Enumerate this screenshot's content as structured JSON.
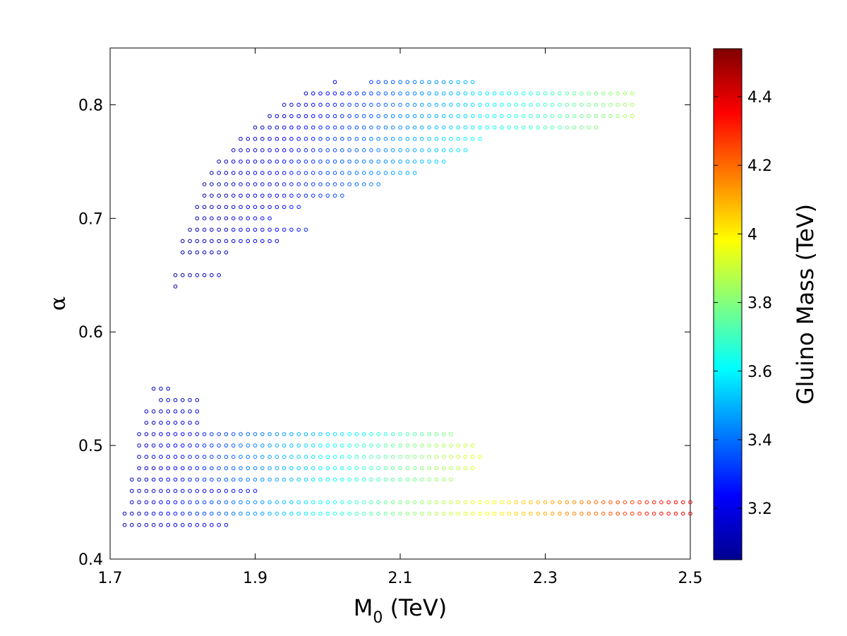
{
  "chart_data": {
    "type": "scatter",
    "title": "",
    "xlabel": "M",
    "xlabel_subscript": "0",
    "xlabel_unit": " (TeV)",
    "ylabel": "α",
    "xlim": [
      1.7,
      2.5
    ],
    "ylim": [
      0.4,
      0.85
    ],
    "xticks": [
      "1.7",
      "1.9",
      "2.1",
      "2.3",
      "2.5"
    ],
    "yticks": [
      "0.4",
      "0.5",
      "0.6",
      "0.7",
      "0.8"
    ],
    "grid": false,
    "marker": "open-circle",
    "x_step": 0.01,
    "color_scale": {
      "colormap": "jet",
      "label": "Gluino Mass (TeV)",
      "range": [
        3.05,
        4.54
      ],
      "ticks": [
        "3.2",
        "3.4",
        "3.6",
        "3.8",
        "4",
        "4.2",
        "4.4"
      ]
    },
    "rows": [
      {
        "alpha": 0.82,
        "x_start": 2.01,
        "x_end": 2.01,
        "c_start": 3.22,
        "c_end": 3.22
      },
      {
        "alpha": 0.82,
        "x_start": 2.06,
        "x_end": 2.2,
        "c_start": 3.32,
        "c_end": 3.52
      },
      {
        "alpha": 0.81,
        "x_start": 1.97,
        "x_end": 2.42,
        "c_start": 3.18,
        "c_end": 3.85
      },
      {
        "alpha": 0.8,
        "x_start": 1.94,
        "x_end": 2.42,
        "c_start": 3.15,
        "c_end": 3.85
      },
      {
        "alpha": 0.79,
        "x_start": 1.92,
        "x_end": 2.42,
        "c_start": 3.14,
        "c_end": 3.86
      },
      {
        "alpha": 0.78,
        "x_start": 1.9,
        "x_end": 2.37,
        "c_start": 3.13,
        "c_end": 3.8
      },
      {
        "alpha": 0.77,
        "x_start": 1.88,
        "x_end": 2.21,
        "c_start": 3.12,
        "c_end": 3.62
      },
      {
        "alpha": 0.76,
        "x_start": 1.87,
        "x_end": 2.19,
        "c_start": 3.12,
        "c_end": 3.58
      },
      {
        "alpha": 0.75,
        "x_start": 1.85,
        "x_end": 2.16,
        "c_start": 3.11,
        "c_end": 3.55
      },
      {
        "alpha": 0.74,
        "x_start": 1.84,
        "x_end": 2.12,
        "c_start": 3.11,
        "c_end": 3.5
      },
      {
        "alpha": 0.73,
        "x_start": 1.83,
        "x_end": 2.07,
        "c_start": 3.1,
        "c_end": 3.42
      },
      {
        "alpha": 0.72,
        "x_start": 1.83,
        "x_end": 2.02,
        "c_start": 3.1,
        "c_end": 3.35
      },
      {
        "alpha": 0.71,
        "x_start": 1.82,
        "x_end": 1.96,
        "c_start": 3.1,
        "c_end": 3.28
      },
      {
        "alpha": 0.7,
        "x_start": 1.82,
        "x_end": 1.92,
        "c_start": 3.1,
        "c_end": 3.24
      },
      {
        "alpha": 0.69,
        "x_start": 1.81,
        "x_end": 1.97,
        "c_start": 3.1,
        "c_end": 3.28
      },
      {
        "alpha": 0.68,
        "x_start": 1.8,
        "x_end": 1.93,
        "c_start": 3.1,
        "c_end": 3.24
      },
      {
        "alpha": 0.67,
        "x_start": 1.8,
        "x_end": 1.86,
        "c_start": 3.1,
        "c_end": 3.16
      },
      {
        "alpha": 0.65,
        "x_start": 1.79,
        "x_end": 1.85,
        "c_start": 3.1,
        "c_end": 3.15
      },
      {
        "alpha": 0.64,
        "x_start": 1.79,
        "x_end": 1.79,
        "c_start": 3.1,
        "c_end": 3.1
      },
      {
        "alpha": 0.55,
        "x_start": 1.76,
        "x_end": 1.78,
        "c_start": 3.12,
        "c_end": 3.14
      },
      {
        "alpha": 0.54,
        "x_start": 1.77,
        "x_end": 1.82,
        "c_start": 3.12,
        "c_end": 3.18
      },
      {
        "alpha": 0.53,
        "x_start": 1.75,
        "x_end": 1.82,
        "c_start": 3.12,
        "c_end": 3.2
      },
      {
        "alpha": 0.52,
        "x_start": 1.75,
        "x_end": 1.82,
        "c_start": 3.12,
        "c_end": 3.2
      },
      {
        "alpha": 0.51,
        "x_start": 1.74,
        "x_end": 2.17,
        "c_start": 3.12,
        "c_end": 3.8
      },
      {
        "alpha": 0.5,
        "x_start": 1.74,
        "x_end": 2.2,
        "c_start": 3.12,
        "c_end": 3.92
      },
      {
        "alpha": 0.49,
        "x_start": 1.74,
        "x_end": 2.21,
        "c_start": 3.12,
        "c_end": 3.95
      },
      {
        "alpha": 0.48,
        "x_start": 1.74,
        "x_end": 2.2,
        "c_start": 3.12,
        "c_end": 3.92
      },
      {
        "alpha": 0.47,
        "x_start": 1.73,
        "x_end": 2.17,
        "c_start": 3.12,
        "c_end": 3.85
      },
      {
        "alpha": 0.46,
        "x_start": 1.73,
        "x_end": 1.9,
        "c_start": 3.12,
        "c_end": 3.25
      },
      {
        "alpha": 0.45,
        "x_start": 1.73,
        "x_end": 2.5,
        "c_start": 3.12,
        "c_end": 4.4
      },
      {
        "alpha": 0.44,
        "x_start": 1.72,
        "x_end": 2.5,
        "c_start": 3.12,
        "c_end": 4.4
      },
      {
        "alpha": 0.43,
        "x_start": 1.72,
        "x_end": 1.86,
        "c_start": 3.12,
        "c_end": 3.22
      }
    ]
  }
}
